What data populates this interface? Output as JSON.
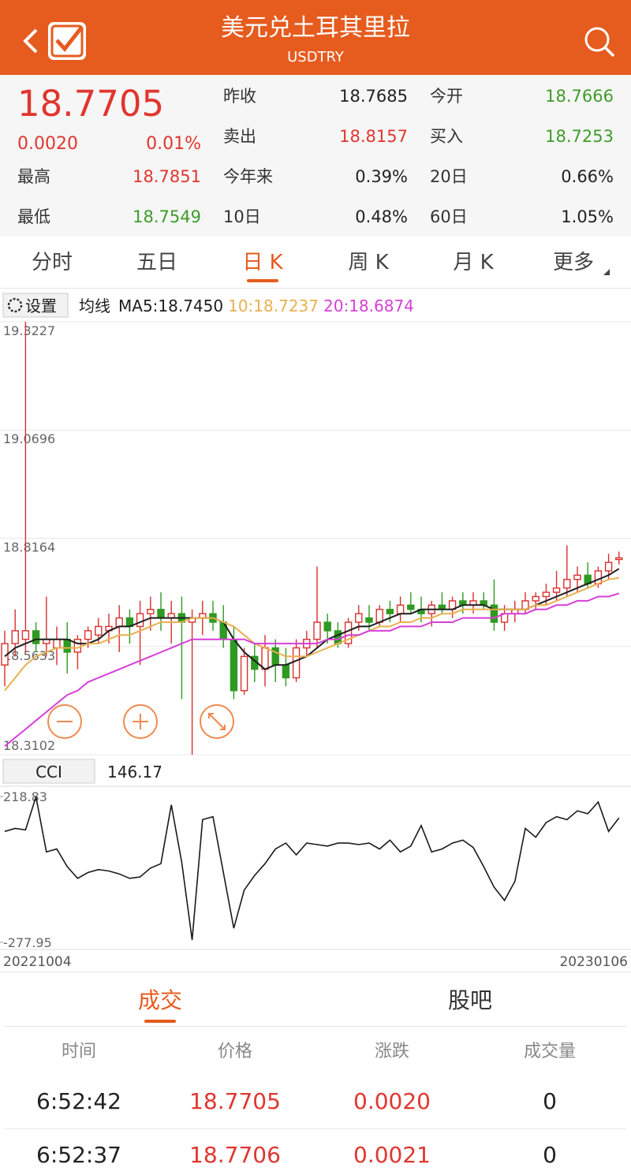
{
  "header": {
    "title": "美元兑土耳其里拉",
    "subtitle": "USDTRY"
  },
  "quote": {
    "price": 18.7705,
    "change": "0.0020",
    "change_pct": "0.01%",
    "stats": [
      {
        "label": "昨收",
        "value": 18.7685
      },
      {
        "label": "今开",
        "value": 18.7666
      },
      {
        "label": "卖出",
        "value": 18.8157
      },
      {
        "label": "买入",
        "value": 18.7253
      },
      {
        "label": "最高",
        "value": 18.7851
      },
      {
        "label": "今年来",
        "value": "0.39%"
      },
      {
        "label": "20日",
        "value": "0.66%"
      },
      {
        "label": "最低",
        "value": 18.7549
      },
      {
        "label": "10日",
        "value": "0.48%"
      },
      {
        "label": "60日",
        "value": "1.05%"
      }
    ]
  },
  "tabs": [
    "分时",
    "五日",
    "日 K",
    "周 K",
    "月 K",
    "更多"
  ],
  "chart_data": [
    {
      "type": "candlestick",
      "settings": "设置",
      "legend_title": "均线",
      "up_color": "#d9302e",
      "down_color": "#2f9a22",
      "ylim": [
        18.3102,
        19.3227
      ],
      "yticks": [
        19.3227,
        19.0696,
        18.8164,
        18.5633,
        18.3102
      ],
      "grid": true,
      "candles": [
        [
          18.52,
          18.6,
          18.47,
          18.57
        ],
        [
          18.57,
          18.65,
          18.54,
          18.6
        ],
        [
          18.58,
          19.3227,
          18.55,
          18.6
        ],
        [
          18.6,
          18.62,
          18.55,
          18.57
        ],
        [
          18.57,
          18.68,
          18.54,
          18.58
        ],
        [
          18.56,
          18.61,
          18.52,
          18.58
        ],
        [
          18.58,
          18.62,
          18.5,
          18.55
        ],
        [
          18.55,
          18.59,
          18.51,
          18.58
        ],
        [
          18.58,
          18.61,
          18.56,
          18.6
        ],
        [
          18.59,
          18.63,
          18.57,
          18.61
        ],
        [
          18.6,
          18.64,
          18.57,
          18.61
        ],
        [
          18.61,
          18.66,
          18.55,
          18.63
        ],
        [
          18.63,
          18.65,
          18.57,
          18.61
        ],
        [
          18.61,
          18.67,
          18.52,
          18.64
        ],
        [
          18.64,
          18.68,
          18.6,
          18.65
        ],
        [
          18.65,
          18.69,
          18.6,
          18.63
        ],
        [
          18.63,
          18.67,
          18.57,
          18.64
        ],
        [
          18.64,
          18.68,
          18.44,
          18.62
        ],
        [
          18.62,
          18.65,
          18.31,
          18.63
        ],
        [
          18.63,
          18.67,
          18.59,
          18.64
        ],
        [
          18.64,
          18.67,
          18.6,
          18.62
        ],
        [
          18.62,
          18.66,
          18.56,
          18.58
        ],
        [
          18.58,
          18.61,
          18.44,
          18.46
        ],
        [
          18.46,
          18.56,
          18.45,
          18.54
        ],
        [
          18.54,
          18.57,
          18.48,
          18.51
        ],
        [
          18.51,
          18.59,
          18.47,
          18.56
        ],
        [
          18.56,
          18.58,
          18.48,
          18.52
        ],
        [
          18.52,
          18.56,
          18.47,
          18.49
        ],
        [
          18.49,
          18.58,
          18.48,
          18.56
        ],
        [
          18.56,
          18.6,
          18.54,
          18.58
        ],
        [
          18.58,
          18.75,
          18.56,
          18.62
        ],
        [
          18.62,
          18.64,
          18.57,
          18.6
        ],
        [
          18.6,
          18.62,
          18.56,
          18.57
        ],
        [
          18.57,
          18.63,
          18.56,
          18.62
        ],
        [
          18.62,
          18.66,
          18.6,
          18.64
        ],
        [
          18.63,
          18.66,
          18.6,
          18.62
        ],
        [
          18.62,
          18.66,
          18.61,
          18.65
        ],
        [
          18.65,
          18.67,
          18.62,
          18.64
        ],
        [
          18.64,
          18.68,
          18.62,
          18.66
        ],
        [
          18.66,
          18.69,
          18.64,
          18.65
        ],
        [
          18.65,
          18.68,
          18.62,
          18.64
        ],
        [
          18.64,
          18.67,
          18.61,
          18.66
        ],
        [
          18.66,
          18.69,
          18.64,
          18.65
        ],
        [
          18.65,
          18.68,
          18.63,
          18.67
        ],
        [
          18.67,
          18.69,
          18.64,
          18.66
        ],
        [
          18.66,
          18.69,
          18.64,
          18.67
        ],
        [
          18.67,
          18.69,
          18.65,
          18.66
        ],
        [
          18.66,
          18.72,
          18.6,
          18.62
        ],
        [
          18.62,
          18.66,
          18.6,
          18.64
        ],
        [
          18.64,
          18.67,
          18.62,
          18.65
        ],
        [
          18.65,
          18.69,
          18.64,
          18.67
        ],
        [
          18.67,
          18.69,
          18.65,
          18.68
        ],
        [
          18.68,
          18.71,
          18.66,
          18.69
        ],
        [
          18.69,
          18.74,
          18.67,
          18.7
        ],
        [
          18.7,
          18.8,
          18.68,
          18.72
        ],
        [
          18.72,
          18.75,
          18.69,
          18.73
        ],
        [
          18.73,
          18.76,
          18.7,
          18.71
        ],
        [
          18.71,
          18.75,
          18.7,
          18.74
        ],
        [
          18.74,
          18.78,
          18.72,
          18.76
        ],
        [
          18.7666,
          18.7851,
          18.7549,
          18.7705
        ]
      ],
      "series": [
        {
          "name": "MA5:18.7450",
          "color": "#1e1e1e",
          "values": [
            18.54,
            18.56,
            18.57,
            18.58,
            18.58,
            18.58,
            18.58,
            18.57,
            18.57,
            18.58,
            18.6,
            18.61,
            18.61,
            18.62,
            18.63,
            18.63,
            18.63,
            18.63,
            18.63,
            18.63,
            18.63,
            18.62,
            18.58,
            18.55,
            18.53,
            18.51,
            18.52,
            18.52,
            18.53,
            18.54,
            18.56,
            18.58,
            18.59,
            18.6,
            18.61,
            18.61,
            18.62,
            18.63,
            18.64,
            18.64,
            18.65,
            18.65,
            18.65,
            18.65,
            18.66,
            18.66,
            18.66,
            18.65,
            18.65,
            18.65,
            18.65,
            18.66,
            18.67,
            18.68,
            18.69,
            18.7,
            18.71,
            18.72,
            18.73,
            18.745
          ]
        },
        {
          "name": "10:18.7237",
          "color": "#e9b04f",
          "values": [
            18.46,
            18.49,
            18.52,
            18.54,
            18.55,
            18.56,
            18.56,
            18.56,
            18.57,
            18.57,
            18.58,
            18.59,
            18.59,
            18.6,
            18.61,
            18.62,
            18.62,
            18.62,
            18.63,
            18.63,
            18.63,
            18.62,
            18.61,
            18.59,
            18.57,
            18.56,
            18.55,
            18.54,
            18.54,
            18.54,
            18.55,
            18.56,
            18.57,
            18.58,
            18.59,
            18.6,
            18.61,
            18.61,
            18.62,
            18.62,
            18.63,
            18.63,
            18.64,
            18.64,
            18.65,
            18.65,
            18.65,
            18.65,
            18.65,
            18.65,
            18.65,
            18.66,
            18.66,
            18.67,
            18.68,
            18.69,
            18.7,
            18.71,
            18.72,
            18.7237
          ]
        },
        {
          "name": "20:18.6874",
          "color": "#d63fd8",
          "values": [
            18.33,
            18.35,
            18.37,
            18.39,
            18.41,
            18.43,
            18.45,
            18.46,
            18.48,
            18.49,
            18.5,
            18.51,
            18.52,
            18.53,
            18.54,
            18.55,
            18.56,
            18.57,
            18.58,
            18.58,
            18.58,
            18.58,
            18.58,
            18.58,
            18.57,
            18.57,
            18.57,
            18.57,
            18.57,
            18.57,
            18.57,
            18.58,
            18.58,
            18.59,
            18.59,
            18.6,
            18.6,
            18.6,
            18.61,
            18.61,
            18.61,
            18.62,
            18.62,
            18.62,
            18.63,
            18.63,
            18.63,
            18.63,
            18.64,
            18.64,
            18.64,
            18.65,
            18.65,
            18.66,
            18.66,
            18.67,
            18.67,
            18.68,
            18.68,
            18.6874
          ]
        }
      ]
    },
    {
      "type": "line",
      "title": "CCI",
      "current": 146.17,
      "color": "#1a1a1a",
      "ylim": [
        -277.95,
        218.83
      ],
      "yticks": [
        218.83,
        -277.95
      ],
      "date_labels": [
        "20221004",
        "20230106"
      ],
      "values": [
        100,
        110,
        105,
        218,
        30,
        40,
        -20,
        -60,
        -40,
        -30,
        -35,
        -45,
        -60,
        -55,
        -25,
        -10,
        190,
        -5,
        -270,
        140,
        150,
        -40,
        -230,
        -100,
        -50,
        -10,
        40,
        60,
        20,
        60,
        55,
        50,
        60,
        60,
        55,
        60,
        40,
        70,
        30,
        50,
        120,
        30,
        40,
        60,
        70,
        45,
        -20,
        -90,
        -135,
        -70,
        110,
        80,
        130,
        150,
        140,
        170,
        160,
        200,
        100,
        146.17
      ]
    }
  ],
  "trade_tabs": [
    "成交",
    "股吧"
  ],
  "table": {
    "columns": [
      "时间",
      "价格",
      "涨跌",
      "成交量"
    ],
    "rows": [
      [
        "6:52:42",
        "18.7705",
        "0.0020",
        "0"
      ],
      [
        "6:52:37",
        "18.7706",
        "0.0021",
        "0"
      ]
    ]
  }
}
